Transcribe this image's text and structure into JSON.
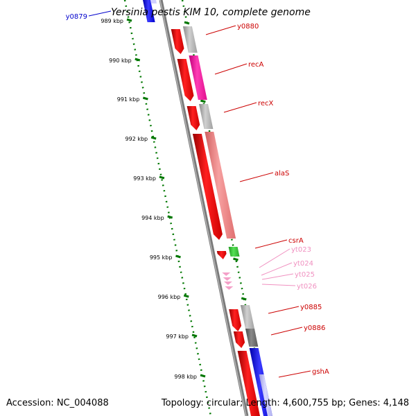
{
  "title": "Yersinia pestis KIM 10, complete genome",
  "footer": {
    "accession": "Accession: NC_004088",
    "summary": "Topology: circular; Length: 4,600,755 bp; Genes: 4,148"
  },
  "ticks": [
    "989 kbp",
    "990 kbp",
    "991 kbp",
    "992 kbp",
    "993 kbp",
    "994 kbp",
    "995 kbp",
    "996 kbp",
    "997 kbp",
    "998 kbp"
  ],
  "genes": [
    {
      "name": "y0879",
      "color": "#0000cc"
    },
    {
      "name": "y0880",
      "color": "#cc0000"
    },
    {
      "name": "recA",
      "color": "#cc0000"
    },
    {
      "name": "recX",
      "color": "#cc0000"
    },
    {
      "name": "alaS",
      "color": "#cc0000"
    },
    {
      "name": "csrA",
      "color": "#cc0000"
    },
    {
      "name": "yt023",
      "color": "#f090c0"
    },
    {
      "name": "yt024",
      "color": "#f090c0"
    },
    {
      "name": "yt025",
      "color": "#f090c0"
    },
    {
      "name": "yt026",
      "color": "#f090c0"
    },
    {
      "name": "y0885",
      "color": "#cc0000"
    },
    {
      "name": "y0886",
      "color": "#cc0000"
    },
    {
      "name": "gshA",
      "color": "#cc0000"
    }
  ],
  "colors": {
    "cds": "#ff0000",
    "gene_grey": "#b0b0b0",
    "gene_dark": "#707070",
    "recA_pink": "#ff1aa0",
    "alaS_salmon": "#f08080",
    "csrA_green": "#33cc33",
    "trna_pink": "#f4a0c8",
    "blue": "#1010ff",
    "backbone": "#808080",
    "tick_green": "#007700"
  }
}
